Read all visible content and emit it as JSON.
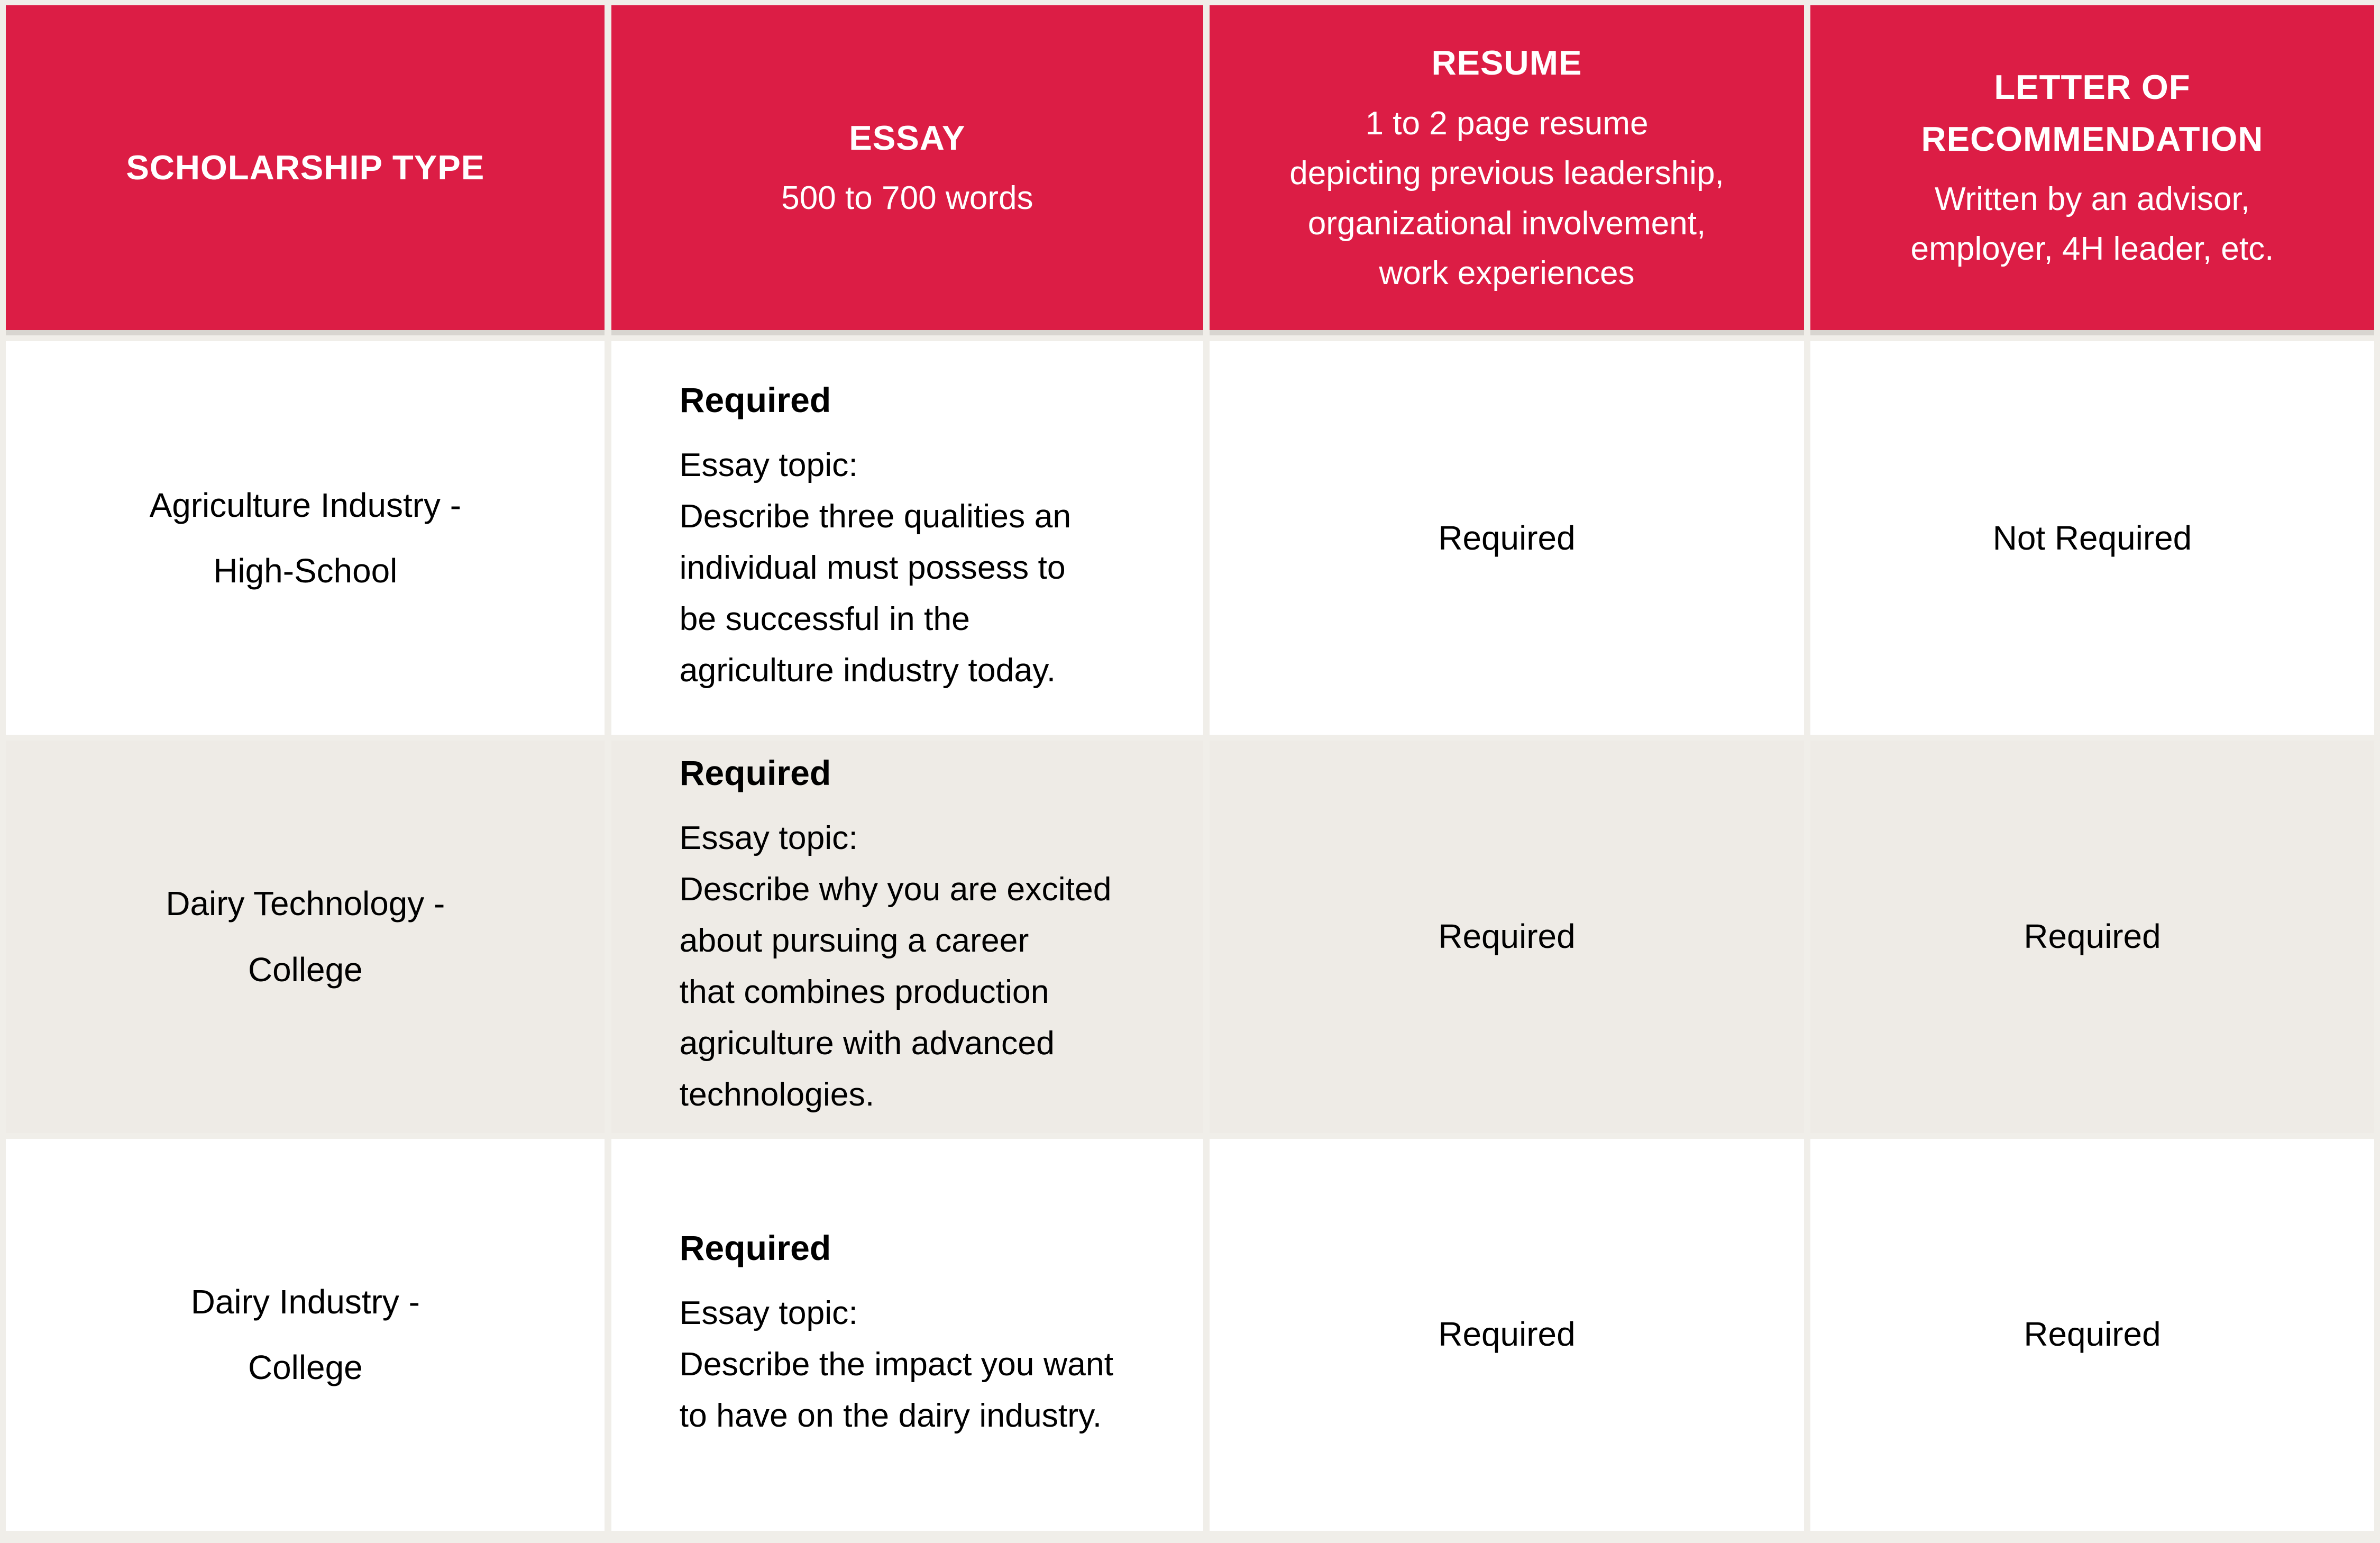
{
  "colors": {
    "header_bg": "#DC1D45",
    "header_text": "#FFFFFF",
    "header_divider": "#D8D5D0",
    "grid_line": "#F0EEE9",
    "row_bg": "#FFFFFF",
    "row_alt_bg": "#EEEBE6",
    "body_text": "#000000"
  },
  "table": {
    "header": {
      "columns": [
        {
          "title": "SCHOLARSHIP TYPE",
          "subtitle": ""
        },
        {
          "title": "ESSAY",
          "subtitle": "500 to 700 words"
        },
        {
          "title": "RESUME",
          "subtitle": "1 to 2 page resume\ndepicting previous leadership,\norganizational involvement,\nwork experiences"
        },
        {
          "title": "LETTER OF\nRECOMMENDATION",
          "subtitle": "Written by an advisor,\nemployer, 4H leader, etc."
        }
      ]
    },
    "rows": [
      {
        "scholarship_type": "Agriculture Industry -\nHigh-School",
        "essay_status": "Required",
        "essay_topic": "Essay topic:\nDescribe three qualities an\nindividual must possess to\nbe successful in the\nagriculture industry today.",
        "resume": "Required",
        "letter_of_recommendation": "Not Required"
      },
      {
        "scholarship_type": "Dairy Technology -\nCollege",
        "essay_status": "Required",
        "essay_topic": "Essay topic:\nDescribe why you are excited\nabout pursuing a career\nthat combines production\nagriculture with advanced\ntechnologies.",
        "resume": "Required",
        "letter_of_recommendation": "Required"
      },
      {
        "scholarship_type": "Dairy Industry -\nCollege",
        "essay_status": "Required",
        "essay_topic": "Essay topic:\nDescribe the impact you want\nto have on the dairy industry.",
        "resume": "Required",
        "letter_of_recommendation": "Required"
      }
    ]
  }
}
